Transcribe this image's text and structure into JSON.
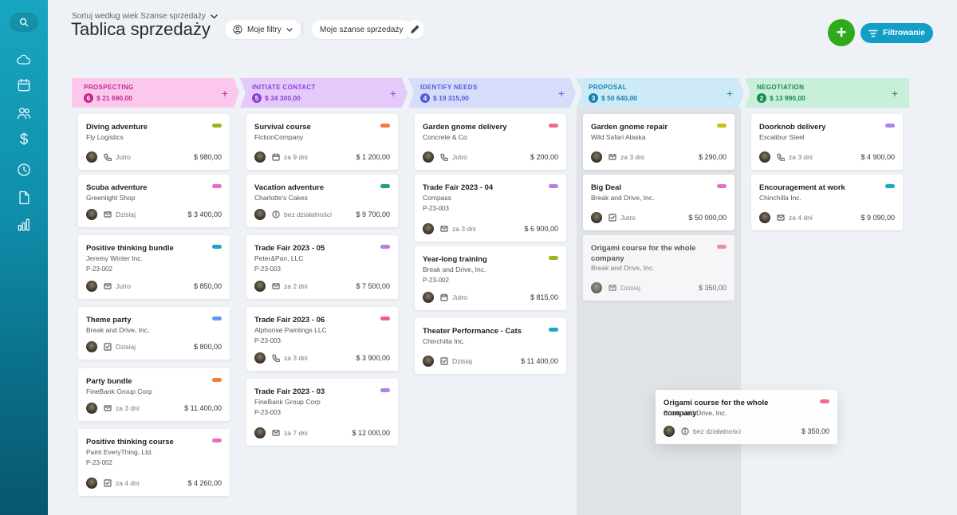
{
  "header": {
    "sort_label": "Sortuj według wiek Szanse sprzedaży",
    "title": "Tablica sprzedaży",
    "my_filters": "Moje filtry",
    "my_deals": "Moje szanse sprzedaży",
    "filter_button": "Filtrowanie",
    "add_button": "+"
  },
  "sidebar": {
    "icons": [
      "search-icon",
      "cloud-icon",
      "calendar-icon",
      "people-icon",
      "dollar-icon",
      "clock-icon",
      "document-icon",
      "bar-chart-icon"
    ],
    "dollar_glyph": "$"
  },
  "colors": {
    "accent_blue": "#139ec8",
    "add_green": "#2eaa1a",
    "stage_prospecting": "#fbc8ec",
    "stage_initiate": "#e4c9fb",
    "stage_identify": "#d7dcfb",
    "stage_proposal": "#cdeaf6",
    "stage_negotiation": "#c8efd9"
  },
  "stages": [
    {
      "name": "PROSPECTING",
      "count": "6",
      "total": "$ 21 690,00",
      "plus": "+"
    },
    {
      "name": "INITIATE CONTACT",
      "count": "5",
      "total": "$ 34 300,00",
      "plus": "+"
    },
    {
      "name": "IDENTIFY NEEDS",
      "count": "4",
      "total": "$ 19 315,00",
      "plus": "+"
    },
    {
      "name": "PROPOSAL",
      "count": "3",
      "total": "$ 50 640,00",
      "plus": "+"
    },
    {
      "name": "NEGOTIATION",
      "count": "2",
      "total": "$ 13 990,00",
      "plus": "+"
    }
  ],
  "cards": {
    "c0": {
      "title": "Diving adventure",
      "company": "Fly Logistics",
      "code": "",
      "activity": "phone-icon",
      "due": "Jutro",
      "amount": "$ 980,00",
      "tag": "#9bb51c"
    },
    "c1": {
      "title": "Scuba adventure",
      "company": "Greenlight Shop",
      "code": "",
      "activity": "mail-icon",
      "due": "Dzisiaj",
      "amount": "$ 3 400,00",
      "tag": "#e46ec9"
    },
    "c2": {
      "title": "Positive thinking bundle",
      "company": "Jeremy Winter Inc.",
      "code": "P-23-002",
      "activity": "mail-icon",
      "due": "Jutro",
      "amount": "$ 850,00",
      "tag": "#1aa7c4"
    },
    "c3": {
      "title": "Theme party",
      "company": "Break and Drive, Inc.",
      "code": "",
      "activity": "check-icon",
      "due": "Dzisiaj",
      "amount": "$ 800,00",
      "tag": "#5a9cf0"
    },
    "c4": {
      "title": "Party bundle",
      "company": "FineBank Group Corp",
      "code": "",
      "activity": "mail-icon",
      "due": "za 3 dni",
      "amount": "$ 11 400,00",
      "tag": "#ee7d3b"
    },
    "c5": {
      "title": "Positive thinking course",
      "company": "Paint EveryThing, Ltd.",
      "code": "P-23-002",
      "activity": "check-icon",
      "due": "za 4 dni",
      "amount": "$ 4 260,00",
      "tag": "#e46ec9"
    },
    "c6": {
      "title": "Survival course",
      "company": "FictionCompany",
      "code": "",
      "activity": "calendar-icon",
      "due": "za 9 dni",
      "amount": "$ 1 200,00",
      "tag": "#ee7d3b"
    },
    "c7": {
      "title": "Vacation adventure",
      "company": "Charlotte's Cakes",
      "code": "",
      "activity": "info-icon",
      "due": "bez działalności",
      "amount": "$ 9 700,00",
      "tag": "#19a37a"
    },
    "c8": {
      "title": "Trade Fair 2023 - 05",
      "company": "Peter&Pan, LLC",
      "code": "P-23-003",
      "activity": "mail-icon",
      "due": "za 2 dni",
      "amount": "$ 7 500,00",
      "tag": "#b47ee6"
    },
    "c9": {
      "title": "Trade Fair 2023 - 06",
      "company": "Alphonse Paintings LLC",
      "code": "P-23-003",
      "activity": "phone-icon",
      "due": "za 3 dni",
      "amount": "$ 3 900,00",
      "tag": "#ef5f86"
    },
    "c10": {
      "title": "Trade Fair 2023 - 03",
      "company": "FineBank Group Corp",
      "code": "P-23-003",
      "activity": "mail-icon",
      "due": "za 7 dni",
      "amount": "$ 12 000,00",
      "tag": "#b47ee6"
    },
    "c11": {
      "title": "Garden gnome delivery",
      "company": "Concrete & Co",
      "code": "",
      "activity": "phone-icon",
      "due": "Jutro",
      "amount": "$ 200,00",
      "tag": "#ef6d8d"
    },
    "c12": {
      "title": "Trade Fair 2023 - 04",
      "company": "Compass",
      "code": "P-23-003",
      "activity": "mail-icon",
      "due": "za 3 dni",
      "amount": "$ 6 900,00",
      "tag": "#b47ee6"
    },
    "c13": {
      "title": "Year-long training",
      "company": "Break and Drive, Inc.",
      "code": "P-23-002",
      "activity": "calendar-icon",
      "due": "Jutro",
      "amount": "$ 815,00",
      "tag": "#9bb51c"
    },
    "c14": {
      "title": "Theater Performance - Cats",
      "company": "Chinchilla Inc.",
      "code": "",
      "activity": "check-icon",
      "due": "Dzisiaj",
      "amount": "$ 11 400,00",
      "tag": "#1aa7c4"
    },
    "c15": {
      "title": "Garden gnome repair",
      "company": "Wild Safari Alaska",
      "code": "",
      "activity": "mail-icon",
      "due": "za 3 dni",
      "amount": "$ 290,00",
      "tag": "#c8c01c"
    },
    "c16": {
      "title": "Big Deal",
      "company": "Break and Drive, Inc.",
      "code": "",
      "activity": "check-icon",
      "due": "Jutro",
      "amount": "$ 50 000,00",
      "tag": "#e46ec9"
    },
    "c17": {
      "title": "Origami course for the whole company",
      "company": "Break and Drive, Inc.",
      "code": "",
      "activity": "mail-icon",
      "due": "Dzisiaj",
      "amount": "$ 350,00",
      "tag": "#ef6d8d"
    },
    "c18": {
      "title": "Doorknob delivery",
      "company": "Excalibur Steel",
      "code": "",
      "activity": "phone-icon",
      "due": "za 3 dni",
      "amount": "$ 4 900,00",
      "tag": "#b47ee6"
    },
    "c19": {
      "title": "Encouragement at work",
      "company": "Chinchilla Inc.",
      "code": "",
      "activity": "mail-icon",
      "due": "za 4 dni",
      "amount": "$ 9 090,00",
      "tag": "#1aa7c4"
    },
    "drag": {
      "title": "Origami course for the whole company",
      "company": "Break and Drive, Inc.",
      "code": "",
      "activity": "info-icon",
      "due": "bez działalności",
      "amount": "$ 350,00",
      "tag": "#ef6d8d"
    }
  }
}
